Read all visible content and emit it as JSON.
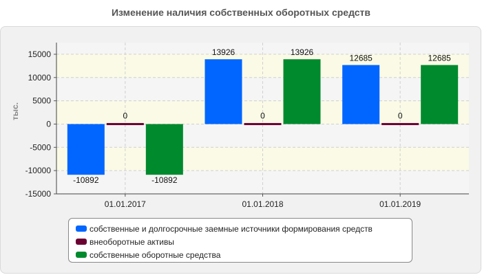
{
  "chart_data": {
    "type": "bar",
    "title": "Изменение наличия собственных оборотных средств",
    "ylabel": "тыс.",
    "ylim": [
      -15000,
      17500
    ],
    "yticks": [
      -15000,
      -10000,
      -5000,
      0,
      5000,
      10000,
      15000
    ],
    "categories": [
      "01.01.2017",
      "01.01.2018",
      "01.01.2019"
    ],
    "grid": true,
    "legend_position": "bottom",
    "series": [
      {
        "name": "собственные и долгосрочные заемные источники формирования средств",
        "color": "#0066ff",
        "values": [
          -10892,
          13926,
          12685
        ],
        "labels": [
          "-10892",
          "13926",
          "12685"
        ]
      },
      {
        "name": "внеоборотные активы",
        "color": "#6b0032",
        "values": [
          0,
          0,
          0
        ],
        "labels": [
          "0",
          "0",
          "0"
        ]
      },
      {
        "name": "собственные оборотные средства",
        "color": "#008a2e",
        "values": [
          -10892,
          13926,
          12685
        ],
        "labels": [
          "-10892",
          "13926",
          "12685"
        ]
      }
    ]
  }
}
